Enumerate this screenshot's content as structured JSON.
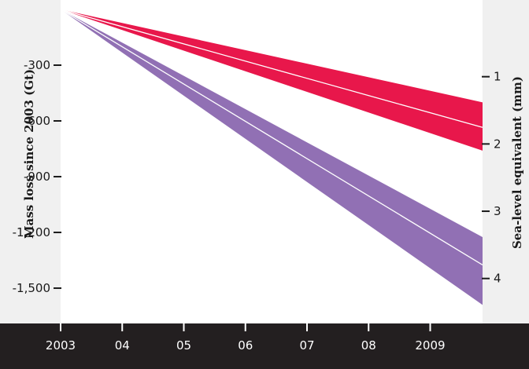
{
  "chart_data": {
    "type": "area",
    "x": [
      2003,
      2009.85
    ],
    "xlim": [
      2003,
      2009.85
    ],
    "x_tick_values": [
      2003,
      2004,
      2005,
      2006,
      2007,
      2008,
      2009
    ],
    "x_tick_labels": [
      "2003",
      "04",
      "05",
      "06",
      "07",
      "08",
      "2009"
    ],
    "ylim": [
      0,
      -1690
    ],
    "y_tick_values": [
      -300,
      -600,
      -900,
      -1200,
      -1500
    ],
    "y_tick_labels": [
      "-300",
      "-600",
      "-900",
      "-1,200",
      "-1,500"
    ],
    "ylabel": "Mass loss since 2003 (Gt)",
    "secondary_y": {
      "label": "Sea-level equivalent (mm)",
      "tick_values": [
        1,
        2,
        3,
        4
      ],
      "tick_labels": [
        "1",
        "2",
        "3",
        "4"
      ],
      "mass_per_unit": -362
    },
    "series": [
      {
        "color": "#e8174b",
        "values": [
          0,
          -635
        ],
        "lower": [
          0,
          -760
        ],
        "upper": [
          0,
          -500
        ]
      },
      {
        "color": "#9170b4",
        "values": [
          0,
          -1375
        ],
        "lower": [
          0,
          -1590
        ],
        "upper": [
          0,
          -1225
        ]
      }
    ],
    "colors": {
      "panel_background": "#f0f0f0",
      "plot_background": "#ffffff",
      "x_axis_band": "#231f20",
      "median_line": "#ffffff"
    }
  }
}
